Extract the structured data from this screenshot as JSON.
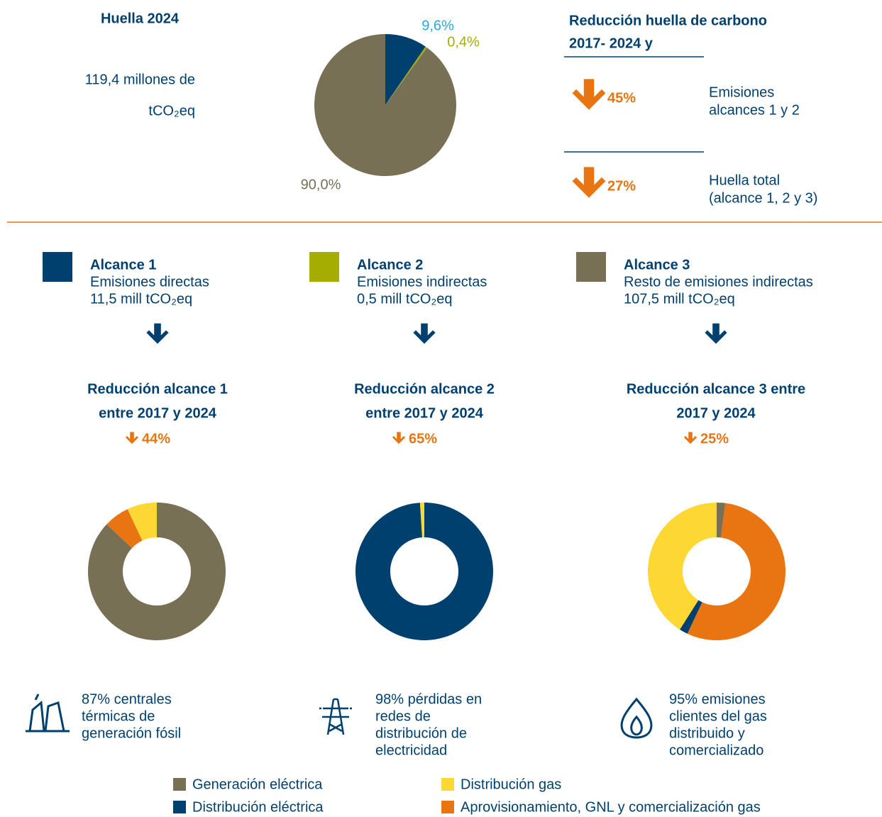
{
  "footprint": {
    "title": "Huella 2024",
    "lines": [
      "119,4 millones de",
      "tCO₂eq"
    ]
  },
  "reduction": {
    "title": [
      "Reducción huella de carbono",
      "2017- 2024 y"
    ],
    "items": [
      {
        "value": "45%",
        "label": [
          "Emisiones",
          "alcances 1 y 2"
        ]
      },
      {
        "value": "27%",
        "label": [
          "Huella total",
          "(alcance 1, 2 y 3)"
        ]
      }
    ]
  },
  "scopes": [
    {
      "title": "Alcance 1",
      "lines": [
        "Emisiones directas",
        "11,5 mill tCO₂eq"
      ],
      "color": "#00406f",
      "reduction_title": [
        "Reducción alcance 1",
        "entre 2017 y 2024"
      ],
      "reduction": "44%",
      "note": [
        "87% centrales",
        "térmicas de",
        "generación fósil"
      ]
    },
    {
      "title": "Alcance 2",
      "lines": [
        "Emisiones indirectas",
        "0,5 mill tCO₂eq"
      ],
      "color": "#a5ad00",
      "reduction_title": [
        "Reducción alcance 2",
        "entre 2017 y 2024"
      ],
      "reduction": "65%",
      "note": [
        "98% pérdidas en",
        "redes de",
        "distribución de",
        "electricidad"
      ]
    },
    {
      "title": "Alcance 3",
      "lines": [
        "Resto de emisiones indirectas",
        "107,5 mill tCO₂eq"
      ],
      "color": "#787055",
      "reduction_title": [
        "Reducción alcance 3 entre",
        "2017 y 2024"
      ],
      "reduction": "25%",
      "note": [
        "95% emisiones",
        "clientes del gas",
        "distribuido y",
        "comercializado"
      ]
    }
  ],
  "chart_data": [
    {
      "type": "pie",
      "values": [
        9.6,
        0.4,
        90.0
      ],
      "value_labels": [
        "9,6%",
        "0,4%",
        "90,0%"
      ],
      "colors": [
        "#00406f",
        "#a5ad00",
        "#787055"
      ],
      "label_colors": [
        "#29a8e0",
        "#a5ad00",
        "#787055"
      ]
    },
    {
      "type": "donut",
      "values": [
        87,
        6,
        7
      ],
      "colors": [
        "#787055",
        "#e87511",
        "#fdd835"
      ]
    },
    {
      "type": "donut",
      "values": [
        99,
        1
      ],
      "colors": [
        "#00406f",
        "#fdd835"
      ]
    },
    {
      "type": "donut",
      "values": [
        2,
        55,
        2,
        41
      ],
      "colors": [
        "#787055",
        "#e87511",
        "#00406f",
        "#fdd835"
      ]
    }
  ],
  "legend": {
    "items": [
      {
        "name": "Generación eléctrica",
        "color": "#787055"
      },
      {
        "name": "Distribución eléctrica",
        "color": "#00406f"
      },
      {
        "name": "Distribución gas",
        "color": "#fdd835"
      },
      {
        "name": "Aprovisionamiento, GNL y comercialización gas",
        "color": "#e87511"
      }
    ]
  }
}
